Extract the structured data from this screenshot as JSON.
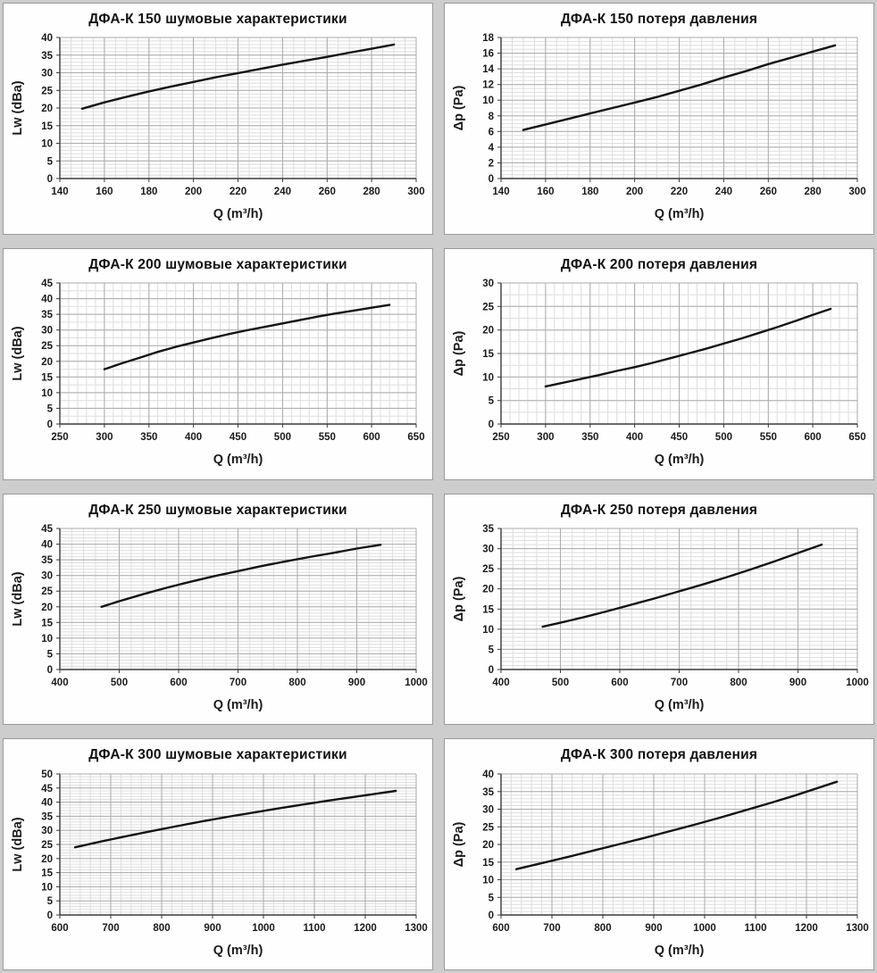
{
  "page": {
    "background": "#cdcdcd",
    "panel_background": "#fefefe",
    "panel_border": "#9a9a9a",
    "grid_minor_color": "#dedede",
    "grid_major_color": "#ababab",
    "axis_color": "#3a3a3a",
    "line_color": "#141414",
    "text_color": "#1a1a1a"
  },
  "chart_data": [
    {
      "id": "dfa-k-150-noise",
      "type": "line",
      "title": "ДФА-К 150 шумовые характеристики",
      "xlabel": "Q (m³/h)",
      "ylabel": "Lw (dBa)",
      "xlim": [
        140,
        300
      ],
      "xtick": 20,
      "xminor": 5,
      "ylim": [
        0,
        40
      ],
      "ytick": 5,
      "yminor": 1,
      "grid": true,
      "legend": "none",
      "x": [
        150,
        160,
        170,
        180,
        190,
        200,
        210,
        220,
        230,
        240,
        250,
        260,
        270,
        280,
        290
      ],
      "y": [
        19.8,
        21.6,
        23.2,
        24.7,
        26.1,
        27.4,
        28.7,
        29.9,
        31.1,
        32.3,
        33.4,
        34.5,
        35.7,
        36.8,
        38
      ]
    },
    {
      "id": "dfa-k-150-pressure",
      "type": "line",
      "title": "ДФА-К 150 потеря давления",
      "xlabel": "Q (m³/h)",
      "ylabel": "Δp (Pa)",
      "xlim": [
        140,
        300
      ],
      "xtick": 20,
      "xminor": 5,
      "ylim": [
        0,
        18
      ],
      "ytick": 2,
      "yminor": 0.5,
      "grid": true,
      "legend": "none",
      "x": [
        150,
        160,
        170,
        180,
        190,
        200,
        210,
        220,
        230,
        240,
        250,
        260,
        270,
        280,
        290
      ],
      "y": [
        6.2,
        6.9,
        7.6,
        8.3,
        9.0,
        9.7,
        10.4,
        11.2,
        12.0,
        12.9,
        13.7,
        14.6,
        15.4,
        16.2,
        17.0
      ]
    },
    {
      "id": "dfa-k-200-noise",
      "type": "line",
      "title": "ДФА-К 200 шумовые характеристики",
      "xlabel": "Q (m³/h)",
      "ylabel": "Lw (dBa)",
      "xlim": [
        250,
        650
      ],
      "xtick": 50,
      "xminor": 10,
      "ylim": [
        0,
        45
      ],
      "ytick": 5,
      "yminor": 2.5,
      "grid": true,
      "legend": "none",
      "x": [
        300,
        320,
        340,
        360,
        380,
        400,
        420,
        440,
        460,
        480,
        500,
        520,
        540,
        560,
        580,
        600,
        620
      ],
      "y": [
        17.5,
        19.4,
        21.2,
        23.0,
        24.6,
        26.0,
        27.4,
        28.7,
        29.9,
        31.0,
        32.1,
        33.2,
        34.3,
        35.3,
        36.2,
        37.1,
        38.0
      ]
    },
    {
      "id": "dfa-k-200-pressure",
      "type": "line",
      "title": "ДФА-К 200 потеря давления",
      "xlabel": "Q (m³/h)",
      "ylabel": "Δp (Pa)",
      "xlim": [
        250,
        650
      ],
      "xtick": 50,
      "xminor": 10,
      "ylim": [
        0,
        30
      ],
      "ytick": 5,
      "yminor": 2.5,
      "grid": true,
      "legend": "none",
      "x": [
        300,
        320,
        340,
        360,
        380,
        400,
        420,
        440,
        460,
        480,
        500,
        520,
        540,
        560,
        580,
        600,
        620
      ],
      "y": [
        8.0,
        8.8,
        9.6,
        10.4,
        11.3,
        12.1,
        13.0,
        14.0,
        15.0,
        16.0,
        17.1,
        18.2,
        19.4,
        20.6,
        21.9,
        23.2,
        24.5
      ]
    },
    {
      "id": "dfa-k-250-noise",
      "type": "line",
      "title": "ДФА-К 250 шумовые характеристики",
      "xlabel": "Q (m³/h)",
      "ylabel": "Lw (dBa)",
      "xlim": [
        400,
        1000
      ],
      "xtick": 100,
      "xminor": 20,
      "ylim": [
        0,
        45
      ],
      "ytick": 5,
      "yminor": 1,
      "grid": true,
      "legend": "none",
      "x": [
        470,
        500,
        540,
        580,
        620,
        660,
        700,
        740,
        780,
        820,
        860,
        900,
        940
      ],
      "y": [
        20.0,
        21.8,
        24.0,
        26.1,
        28.0,
        29.8,
        31.4,
        33.0,
        34.5,
        35.9,
        37.2,
        38.6,
        39.8
      ]
    },
    {
      "id": "dfa-k-250-pressure",
      "type": "line",
      "title": "ДФА-К 250 потеря давления",
      "xlabel": "Q (m³/h)",
      "ylabel": "Δp (Pa)",
      "xlim": [
        400,
        1000
      ],
      "xtick": 100,
      "xminor": 20,
      "ylim": [
        0,
        35
      ],
      "ytick": 5,
      "yminor": 1,
      "grid": true,
      "legend": "none",
      "x": [
        470,
        500,
        540,
        580,
        620,
        660,
        700,
        740,
        780,
        820,
        860,
        900,
        940
      ],
      "y": [
        10.6,
        11.6,
        13.0,
        14.5,
        16.1,
        17.7,
        19.4,
        21.1,
        22.9,
        24.8,
        26.8,
        28.9,
        31.0
      ]
    },
    {
      "id": "dfa-k-300-noise",
      "type": "line",
      "title": "ДФА-К 300 шумовые характеристики",
      "xlabel": "Q (m³/h)",
      "ylabel": "Lw (dBa)",
      "xlim": [
        600,
        1300
      ],
      "xtick": 100,
      "xminor": 20,
      "ylim": [
        0,
        50
      ],
      "ytick": 5,
      "yminor": 1,
      "grid": true,
      "legend": "none",
      "x": [
        630,
        680,
        730,
        780,
        830,
        880,
        930,
        980,
        1030,
        1080,
        1130,
        1180,
        1260
      ],
      "y": [
        24.0,
        26.0,
        27.9,
        29.7,
        31.5,
        33.2,
        34.8,
        36.3,
        37.8,
        39.2,
        40.6,
        41.9,
        44.0
      ]
    },
    {
      "id": "dfa-k-300-pressure",
      "type": "line",
      "title": "ДФА-К 300 потеря давления",
      "xlabel": "Q (m³/h)",
      "ylabel": "Δp (Pa)",
      "xlim": [
        600,
        1300
      ],
      "xtick": 100,
      "xminor": 20,
      "ylim": [
        0,
        40
      ],
      "ytick": 5,
      "yminor": 1,
      "grid": true,
      "legend": "none",
      "x": [
        630,
        680,
        730,
        780,
        830,
        880,
        930,
        980,
        1030,
        1080,
        1130,
        1180,
        1260
      ],
      "y": [
        13.0,
        14.7,
        16.4,
        18.2,
        20.0,
        21.8,
        23.7,
        25.6,
        27.6,
        29.7,
        31.8,
        34.0,
        37.8
      ]
    }
  ]
}
